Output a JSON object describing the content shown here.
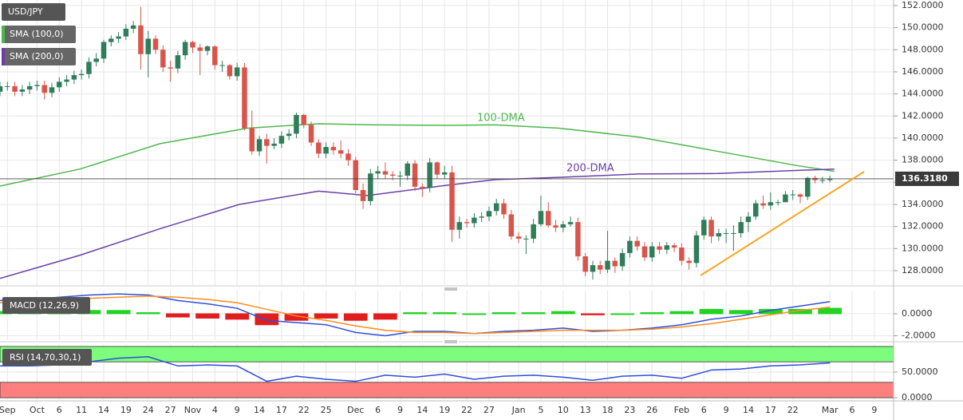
{
  "chart_data": [
    {
      "type": "candlestick",
      "title": "USD/JPY",
      "up_color": "#2f7d5a",
      "down_color": "#d9554c",
      "xlim": [
        0,
        120.6
      ],
      "xticks": [
        {
          "value": 1,
          "label": "Sep"
        },
        {
          "value": 5,
          "label": "Oct"
        },
        {
          "value": 8,
          "label": "6"
        },
        {
          "value": 11,
          "label": "11"
        },
        {
          "value": 14,
          "label": "14"
        },
        {
          "value": 17,
          "label": "19"
        },
        {
          "value": 20,
          "label": "24"
        },
        {
          "value": 23,
          "label": "27"
        },
        {
          "value": 26,
          "label": "Nov"
        },
        {
          "value": 29,
          "label": "4"
        },
        {
          "value": 32,
          "label": "9"
        },
        {
          "value": 35,
          "label": "14"
        },
        {
          "value": 38,
          "label": "17"
        },
        {
          "value": 41,
          "label": "22"
        },
        {
          "value": 44,
          "label": "25"
        },
        {
          "value": 48,
          "label": "Dec"
        },
        {
          "value": 51,
          "label": "6"
        },
        {
          "value": 54,
          "label": "9"
        },
        {
          "value": 57,
          "label": "14"
        },
        {
          "value": 60,
          "label": "19"
        },
        {
          "value": 63,
          "label": "22"
        },
        {
          "value": 66,
          "label": "27"
        },
        {
          "value": 70,
          "label": "Jan"
        },
        {
          "value": 73,
          "label": "5"
        },
        {
          "value": 76,
          "label": "10"
        },
        {
          "value": 79,
          "label": "13"
        },
        {
          "value": 82,
          "label": "18"
        },
        {
          "value": 85,
          "label": "23"
        },
        {
          "value": 88,
          "label": "26"
        },
        {
          "value": 92,
          "label": "Feb"
        },
        {
          "value": 95,
          "label": "6"
        },
        {
          "value": 98,
          "label": "9"
        },
        {
          "value": 101,
          "label": "14"
        },
        {
          "value": 104,
          "label": "17"
        },
        {
          "value": 107,
          "label": "22"
        },
        {
          "value": 112,
          "label": "Mar"
        },
        {
          "value": 115,
          "label": "6"
        },
        {
          "value": 118,
          "label": "9"
        }
      ],
      "ylim": [
        126.7,
        152.5
      ],
      "yticks": [
        {
          "value": 128,
          "label": "128.0000"
        },
        {
          "value": 130,
          "label": "130.0000"
        },
        {
          "value": 132,
          "label": "132.0000"
        },
        {
          "value": 134,
          "label": "134.0000"
        },
        {
          "value": 136,
          "label": "136.0000"
        },
        {
          "value": 138,
          "label": "138.0000"
        },
        {
          "value": 140,
          "label": "140.0000"
        },
        {
          "value": 142,
          "label": "142.0000"
        },
        {
          "value": 144,
          "label": "144.0000"
        },
        {
          "value": 146,
          "label": "146.0000"
        },
        {
          "value": 148,
          "label": "148.0000"
        },
        {
          "value": 150,
          "label": "150.0000"
        },
        {
          "value": 152,
          "label": "152.0000"
        }
      ],
      "grid": true,
      "last_price": {
        "value": 136.318,
        "label": "136.3180"
      },
      "open": [
        144.2,
        144.7,
        144.7,
        144.2,
        144.4,
        144.7,
        144.8,
        144.1,
        144.6,
        145.1,
        145.3,
        145.7,
        145.8,
        146.9,
        147.2,
        148.7,
        149.0,
        149.2,
        149.9,
        150.2,
        147.6,
        149.0,
        148.0,
        146.4,
        146.3,
        147.5,
        148.7,
        148.2,
        147.9,
        148.3,
        146.6,
        146.6,
        145.6,
        146.4,
        140.9,
        138.8,
        139.9,
        139.3,
        139.5,
        140.2,
        140.4,
        142.1,
        141.2,
        139.6,
        138.6,
        139.2,
        138.9,
        138.6,
        138.0,
        135.3,
        134.3,
        136.8,
        137.0,
        136.7,
        136.6,
        136.6,
        137.7,
        135.6,
        135.5,
        137.8,
        136.7,
        136.9,
        131.7,
        132.4,
        132.3,
        132.8,
        132.9,
        133.4,
        134.1,
        133.1,
        131.1,
        130.9,
        130.9,
        132.2,
        133.4,
        132.1,
        131.9,
        132.2,
        132.4,
        129.3,
        127.9,
        128.5,
        128.1,
        128.9,
        128.4,
        129.6,
        130.7,
        130.2,
        129.2,
        130.2,
        129.9,
        130.3,
        130.1,
        128.9,
        128.7,
        131.2,
        132.6,
        131.1,
        131.4,
        131.4,
        131.4,
        132.4,
        132.9,
        134.1,
        133.9,
        134.2,
        134.2,
        134.9,
        134.9,
        134.7,
        136.4,
        136.2,
        136.2
      ],
      "high": [
        145.1,
        145.1,
        145.1,
        144.8,
        145.1,
        145.2,
        145.2,
        145.0,
        145.5,
        145.7,
        146.1,
        146.2,
        147.3,
        147.7,
        148.9,
        149.3,
        149.6,
        150.3,
        150.6,
        151.9,
        149.7,
        149.3,
        148.4,
        147.0,
        147.9,
        148.9,
        148.8,
        148.5,
        148.4,
        148.4,
        147.0,
        146.7,
        146.8,
        146.8,
        142.5,
        140.2,
        140.4,
        140.0,
        140.6,
        140.8,
        142.3,
        142.2,
        141.5,
        139.9,
        139.6,
        139.6,
        139.8,
        139.0,
        138.3,
        135.9,
        137.2,
        137.5,
        137.8,
        137.0,
        137.0,
        137.9,
        138.0,
        135.9,
        138.2,
        137.9,
        137.5,
        137.5,
        132.9,
        132.7,
        133.2,
        133.3,
        133.8,
        134.5,
        134.5,
        133.5,
        131.5,
        131.2,
        132.7,
        134.8,
        134.2,
        132.6,
        132.5,
        132.9,
        132.8,
        129.6,
        128.9,
        128.9,
        131.6,
        129.2,
        130.0,
        131.1,
        131.1,
        130.6,
        130.6,
        130.6,
        130.6,
        130.5,
        130.5,
        129.2,
        131.6,
        132.9,
        132.9,
        131.8,
        131.8,
        132.1,
        132.9,
        133.3,
        134.4,
        134.8,
        135.1,
        134.4,
        135.2,
        135.3,
        135.0,
        136.5,
        136.6,
        136.5,
        136.6
      ],
      "low": [
        143.8,
        144.3,
        143.8,
        143.8,
        144.0,
        144.3,
        143.5,
        143.7,
        144.2,
        144.7,
        144.9,
        145.3,
        145.4,
        146.5,
        146.8,
        148.3,
        148.6,
        148.9,
        149.5,
        146.2,
        145.5,
        147.6,
        146.0,
        145.1,
        145.9,
        147.1,
        147.7,
        145.7,
        147.5,
        146.2,
        146.0,
        145.3,
        145.2,
        140.7,
        138.5,
        138.4,
        137.7,
        139.0,
        139.1,
        139.8,
        140.0,
        140.9,
        139.3,
        138.2,
        138.2,
        138.5,
        138.2,
        137.5,
        135.0,
        133.6,
        133.9,
        136.3,
        136.3,
        136.2,
        135.6,
        136.2,
        135.2,
        134.7,
        135.1,
        136.3,
        136.3,
        130.6,
        130.9,
        131.9,
        131.9,
        132.4,
        132.5,
        133.0,
        132.7,
        130.8,
        130.5,
        129.5,
        130.5,
        132.0,
        131.9,
        131.5,
        131.5,
        132.0,
        128.9,
        127.5,
        127.2,
        127.7,
        127.8,
        127.8,
        128.0,
        129.2,
        129.8,
        128.9,
        128.8,
        129.5,
        129.5,
        129.7,
        128.5,
        128.1,
        128.3,
        130.8,
        130.5,
        130.7,
        130.5,
        129.8,
        131.0,
        131.5,
        132.6,
        133.6,
        133.5,
        133.9,
        134.2,
        134.4,
        134.1,
        134.4,
        135.9,
        135.9,
        136.0
      ],
      "close": [
        144.7,
        144.7,
        144.2,
        144.4,
        144.7,
        144.8,
        144.1,
        144.6,
        145.1,
        145.3,
        145.7,
        145.8,
        146.9,
        147.2,
        148.7,
        149.0,
        149.2,
        149.9,
        150.2,
        147.6,
        149.0,
        148.0,
        146.4,
        146.3,
        147.5,
        148.7,
        148.2,
        147.9,
        148.3,
        146.6,
        146.6,
        145.6,
        146.4,
        140.9,
        138.8,
        139.9,
        139.3,
        139.5,
        140.2,
        140.4,
        142.1,
        141.2,
        139.6,
        138.6,
        139.2,
        138.9,
        138.6,
        138.0,
        135.3,
        134.3,
        136.8,
        137.0,
        136.7,
        136.6,
        136.6,
        137.7,
        135.6,
        135.5,
        137.8,
        136.7,
        136.9,
        131.7,
        132.4,
        132.3,
        132.8,
        132.9,
        133.4,
        134.1,
        133.1,
        131.1,
        130.9,
        130.9,
        132.2,
        133.4,
        132.1,
        131.9,
        132.2,
        132.4,
        129.3,
        127.9,
        128.5,
        128.1,
        128.9,
        128.4,
        129.6,
        130.7,
        130.2,
        129.2,
        130.2,
        129.9,
        130.3,
        130.1,
        128.9,
        128.7,
        131.2,
        132.6,
        131.1,
        131.4,
        131.4,
        131.4,
        132.4,
        132.9,
        134.1,
        133.9,
        134.2,
        134.2,
        134.9,
        134.9,
        134.7,
        136.4,
        136.2,
        136.2,
        136.3
      ],
      "series": [
        {
          "name": "SMA (100,0)",
          "color": "#4cb84c",
          "x": [
            0,
            10.8,
            21.6,
            33.4,
            43,
            50.6,
            60.3,
            66.8,
            75.4,
            86.2,
            96.9,
            107.7,
            112.6
          ],
          "values": [
            135.66,
            137.2,
            139.5,
            140.9,
            141.3,
            141.2,
            141.15,
            141.2,
            140.9,
            140.1,
            138.8,
            137.5,
            137.0
          ]
        },
        {
          "name": "SMA (200,0)",
          "color": "#6a3fa8",
          "x": [
            0,
            10.8,
            21.6,
            32.3,
            43,
            49.6,
            60.3,
            66.8,
            75.4,
            86.2,
            96.9,
            112.6
          ],
          "values": [
            127.3,
            129.4,
            131.8,
            134.0,
            135.2,
            134.8,
            135.73,
            136.24,
            136.45,
            136.75,
            136.8,
            137.2
          ]
        }
      ],
      "annotations": [
        "100-DMA",
        "200-DMA"
      ],
      "trendline_color": "#f5a623"
    },
    {
      "type": "macd",
      "title": "MACD (12,26,9)",
      "ylim": [
        -2.4,
        2.1
      ],
      "yticks": [
        {
          "value": 0,
          "label": "0.0000"
        },
        {
          "value": -2,
          "label": "-2.0000"
        }
      ],
      "x": [
        0,
        4,
        8,
        12,
        16,
        20,
        24,
        28,
        32,
        36,
        40,
        44,
        48,
        52,
        56,
        60,
        64,
        68,
        72,
        76,
        80,
        84,
        88,
        92,
        96,
        100,
        104,
        108,
        112
      ],
      "series": [
        {
          "name": "MACD",
          "color": "#2f4fd8",
          "values": [
            1.2,
            1.3,
            1.5,
            1.7,
            1.8,
            1.7,
            1.2,
            0.9,
            0.5,
            -0.6,
            -0.8,
            -1.0,
            -1.7,
            -2.0,
            -1.6,
            -1.6,
            -1.8,
            -1.6,
            -1.5,
            -1.3,
            -1.6,
            -1.5,
            -1.3,
            -1.0,
            -0.5,
            -0.2,
            0.3,
            0.7,
            1.1
          ]
        },
        {
          "name": "Signal",
          "color": "#ff8c1a",
          "values": [
            1.0,
            1.1,
            1.2,
            1.4,
            1.5,
            1.6,
            1.5,
            1.3,
            1.0,
            0.4,
            -0.2,
            -0.6,
            -1.1,
            -1.5,
            -1.7,
            -1.7,
            -1.8,
            -1.7,
            -1.6,
            -1.5,
            -1.5,
            -1.5,
            -1.4,
            -1.2,
            -0.9,
            -0.5,
            -0.1,
            0.3,
            0.6
          ]
        }
      ],
      "histogram": [
        0.2,
        0.2,
        0.3,
        0.3,
        0.3,
        0.1,
        -0.3,
        -0.4,
        -0.5,
        -1.0,
        -0.6,
        -0.4,
        -0.6,
        -0.5,
        0.1,
        0.1,
        0.0,
        0.1,
        0.1,
        0.2,
        -0.1,
        0.0,
        0.1,
        0.2,
        0.4,
        0.3,
        0.4,
        0.4,
        0.5
      ],
      "hist_up_color": "#22d322",
      "hist_down_color": "#e01e1e"
    },
    {
      "type": "line",
      "title": "RSI (14,70,30,1)",
      "ylim": [
        -3,
        103
      ],
      "yticks": [
        {
          "value": 50,
          "label": "50.0000"
        },
        {
          "value": 0,
          "label": "0.0000"
        }
      ],
      "x": [
        0,
        4,
        8,
        12,
        16,
        20,
        24,
        28,
        32,
        36,
        40,
        44,
        48,
        52,
        56,
        60,
        64,
        68,
        72,
        76,
        80,
        84,
        88,
        92,
        96,
        100,
        104,
        108,
        112
      ],
      "series": [
        {
          "name": "RSI",
          "color": "#2f4fd8",
          "values": [
            62,
            62,
            64,
            70,
            77,
            80,
            62,
            64,
            62,
            32,
            42,
            36,
            32,
            44,
            40,
            46,
            36,
            42,
            44,
            40,
            34,
            42,
            44,
            38,
            54,
            56,
            62,
            64,
            68
          ]
        }
      ],
      "bands": [
        {
          "from": 70,
          "to": 100,
          "color": "#7dfc7d"
        },
        {
          "from": 0,
          "to": 30,
          "color": "#ff7f7f"
        }
      ]
    }
  ]
}
